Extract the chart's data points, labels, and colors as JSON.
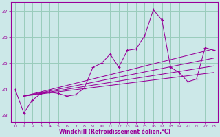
{
  "xlabel": "Windchill (Refroidissement éolien,°C)",
  "bg_color": "#cce8e8",
  "line_color": "#990099",
  "grid_color": "#99ccbb",
  "xlim": [
    -0.5,
    23.5
  ],
  "ylim": [
    22.75,
    27.35
  ],
  "yticks": [
    23,
    24,
    25,
    26,
    27
  ],
  "xticks": [
    0,
    1,
    2,
    3,
    4,
    5,
    6,
    7,
    8,
    9,
    10,
    11,
    12,
    13,
    14,
    15,
    16,
    17,
    18,
    19,
    20,
    21,
    22,
    23
  ],
  "data_x": [
    0,
    1,
    2,
    3,
    4,
    5,
    6,
    7,
    8,
    9,
    10,
    11,
    12,
    13,
    14,
    15,
    16,
    17,
    18,
    19,
    20,
    21,
    22,
    23
  ],
  "data_y": [
    24.0,
    23.1,
    23.6,
    23.85,
    23.9,
    23.85,
    23.75,
    23.8,
    24.05,
    24.85,
    25.0,
    25.35,
    24.85,
    25.5,
    25.55,
    26.05,
    27.05,
    26.65,
    24.85,
    24.65,
    24.3,
    24.4,
    25.6,
    25.5
  ],
  "reg_lines": [
    {
      "x": [
        1,
        23
      ],
      "y": [
        23.75,
        25.55
      ]
    },
    {
      "x": [
        1,
        23
      ],
      "y": [
        23.75,
        25.2
      ]
    },
    {
      "x": [
        1,
        23
      ],
      "y": [
        23.75,
        24.9
      ]
    },
    {
      "x": [
        1,
        23
      ],
      "y": [
        23.75,
        24.65
      ]
    }
  ]
}
